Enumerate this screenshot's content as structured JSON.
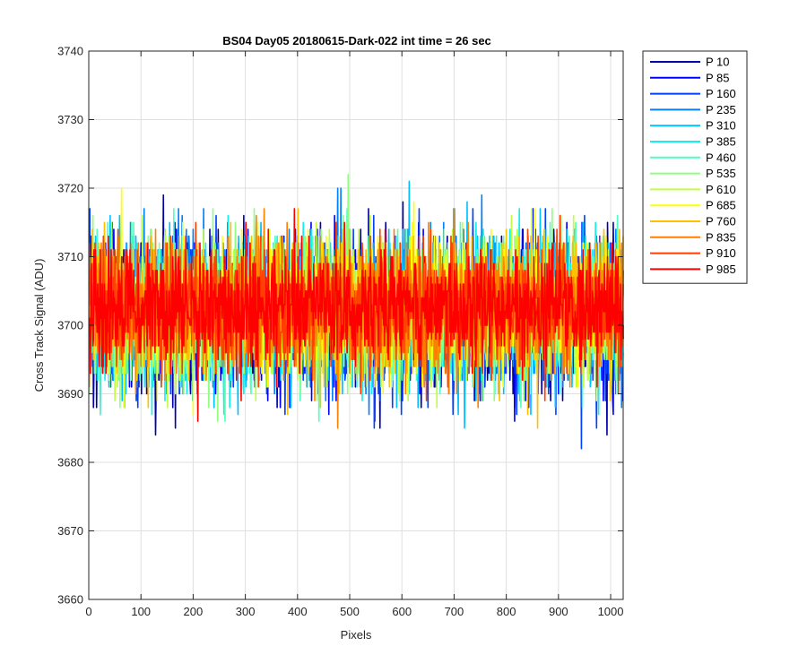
{
  "chart_data": {
    "type": "line",
    "title": "BS04 Day05 20180615-Dark-022 int time = 26 sec",
    "xlabel": "Pixels",
    "ylabel": "Cross Track Signal (ADU)",
    "xlim": [
      0,
      1024
    ],
    "ylim": [
      3660,
      3740
    ],
    "xticks": [
      0,
      100,
      200,
      300,
      400,
      500,
      600,
      700,
      800,
      900,
      1000
    ],
    "yticks": [
      3660,
      3670,
      3680,
      3690,
      3700,
      3710,
      3720,
      3730,
      3740
    ],
    "grid": true,
    "legend_position": "outside-top-right",
    "x_points": 1024,
    "series": [
      {
        "name": "P 10",
        "color": "#0000aa",
        "center": 3701.0,
        "spread": 5.5,
        "seed": 11
      },
      {
        "name": "P 85",
        "color": "#0000ff",
        "center": 3701.5,
        "spread": 5.5,
        "seed": 23
      },
      {
        "name": "P 160",
        "color": "#0040ff",
        "center": 3701.5,
        "spread": 5.3,
        "seed": 37
      },
      {
        "name": "P 235",
        "color": "#0080ff",
        "center": 3702.0,
        "spread": 5.2,
        "seed": 41
      },
      {
        "name": "P 310",
        "color": "#00c0ff",
        "center": 3702.0,
        "spread": 5.2,
        "seed": 53
      },
      {
        "name": "P 385",
        "color": "#10f0f0",
        "center": 3702.0,
        "spread": 5.3,
        "seed": 67
      },
      {
        "name": "P 460",
        "color": "#50ffc0",
        "center": 3702.0,
        "spread": 5.2,
        "seed": 71
      },
      {
        "name": "P 535",
        "color": "#90ff80",
        "center": 3702.0,
        "spread": 5.0,
        "seed": 83
      },
      {
        "name": "P 610",
        "color": "#c0ff40",
        "center": 3702.0,
        "spread": 5.0,
        "seed": 97
      },
      {
        "name": "P 685",
        "color": "#ffff00",
        "center": 3702.5,
        "spread": 5.0,
        "seed": 101
      },
      {
        "name": "P 760",
        "color": "#ffc000",
        "center": 3702.5,
        "spread": 4.8,
        "seed": 113
      },
      {
        "name": "P 835",
        "color": "#ff8000",
        "center": 3702.5,
        "spread": 4.5,
        "seed": 127
      },
      {
        "name": "P 910",
        "color": "#ff4000",
        "center": 3702.5,
        "spread": 4.3,
        "seed": 131
      },
      {
        "name": "P 985",
        "color": "#ff0000",
        "center": 3702.5,
        "spread": 4.0,
        "seed": 149
      }
    ]
  }
}
